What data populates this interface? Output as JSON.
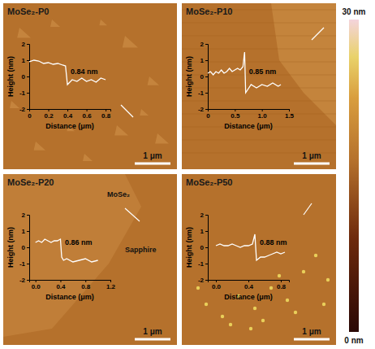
{
  "chart_data": [
    {
      "type": "line",
      "title": "MoSe₂-P0",
      "x_label": "Distance (μm)",
      "y_label": "Height (nm)",
      "x": [
        0,
        0.05,
        0.1,
        0.15,
        0.2,
        0.25,
        0.3,
        0.35,
        0.38,
        0.4,
        0.45,
        0.5,
        0.55,
        0.6,
        0.65,
        0.7,
        0.75,
        0.8
      ],
      "values": [
        0.9,
        1.0,
        0.95,
        0.8,
        0.85,
        0.75,
        0.8,
        0.7,
        0.65,
        -0.5,
        -0.2,
        -0.3,
        -0.1,
        -0.3,
        -0.2,
        -0.35,
        -0.1,
        -0.2
      ],
      "color": "#ffffff",
      "xlim": [
        0,
        0.85
      ],
      "xticks": [
        0,
        0.2,
        0.4,
        0.6,
        0.8
      ],
      "ylim": [
        -2,
        2
      ],
      "yticks": [
        -2,
        -1,
        0,
        1,
        2
      ],
      "annotations": [
        "0.84 nm"
      ],
      "scale_bar": "1 μm"
    },
    {
      "type": "line",
      "title": "MoSe₂-P10",
      "x_label": "Distance (μm)",
      "y_label": "Height (nm)",
      "x": [
        0,
        0.05,
        0.1,
        0.15,
        0.2,
        0.25,
        0.3,
        0.35,
        0.4,
        0.45,
        0.5,
        0.55,
        0.6,
        0.65,
        0.68,
        0.7,
        0.8,
        0.9,
        1.0,
        1.1,
        1.2,
        1.3,
        1.35
      ],
      "values": [
        0.2,
        0.3,
        0.1,
        0.3,
        0.2,
        0.4,
        0.2,
        0.3,
        0.5,
        0.3,
        0.4,
        0.5,
        0.4,
        0.6,
        1.5,
        -1.0,
        -0.5,
        -0.7,
        -0.5,
        -0.6,
        -0.4,
        -0.6,
        -0.5
      ],
      "color": "#ffffff",
      "xlim": [
        0,
        1.5
      ],
      "xticks": [
        0,
        0.5,
        {
          "value": 1,
          "label": "1.0"
        },
        1.5
      ],
      "ylim": [
        -2,
        2
      ],
      "yticks": [
        -2,
        -1,
        0,
        1,
        2
      ],
      "annotations": [
        "0.85 nm"
      ],
      "scale_bar": "1 μm"
    },
    {
      "type": "line",
      "title": "MoSe₂-P20",
      "x_label": "Distance (μm)",
      "y_label": "Height (nm)",
      "x": [
        0,
        0.05,
        0.1,
        0.15,
        0.2,
        0.25,
        0.3,
        0.35,
        0.4,
        0.42,
        0.45,
        0.5,
        0.6,
        0.7,
        0.8,
        0.9,
        1.0
      ],
      "values": [
        0.3,
        0.4,
        0.3,
        0.5,
        0.4,
        0.3,
        0.4,
        0.4,
        0.5,
        -0.6,
        -0.8,
        -0.7,
        -0.9,
        -0.8,
        -0.7,
        -0.9,
        -0.8
      ],
      "color": "#ffffff",
      "xlim": [
        -0.1,
        1.2
      ],
      "xticks": [
        {
          "value": 0,
          "label": "0.0"
        },
        0.4,
        0.8,
        1.2
      ],
      "ylim": [
        -2,
        2
      ],
      "yticks": [
        -2,
        -1,
        0,
        1,
        2
      ],
      "annotations": [
        "0.86 nm"
      ],
      "region_labels": [
        "MoSe₂",
        "Sapphire"
      ],
      "scale_bar": "1 μm"
    },
    {
      "type": "line",
      "title": "MoSe₂-P50",
      "x_label": "Distance (μm)",
      "y_label": "Height (nm)",
      "x": [
        0,
        0.05,
        0.1,
        0.15,
        0.2,
        0.25,
        0.3,
        0.35,
        0.4,
        0.45,
        0.48,
        0.5,
        0.55,
        0.6,
        0.65,
        0.7,
        0.75,
        0.8,
        0.85
      ],
      "values": [
        0.1,
        0.2,
        0.1,
        0.1,
        0.2,
        0.1,
        0.0,
        0.1,
        0.1,
        0.2,
        0.8,
        -0.8,
        -0.6,
        -0.6,
        -0.5,
        -0.4,
        -0.3,
        -0.4,
        -0.3
      ],
      "color": "#ffffff",
      "xlim": [
        -0.1,
        0.9
      ],
      "xticks": [
        {
          "value": 0,
          "label": "0.0"
        },
        0.4,
        0.8
      ],
      "ylim": [
        -2,
        2
      ],
      "yticks": [
        -2,
        -1,
        0,
        1,
        2
      ],
      "annotations": [
        "0.88 nm"
      ],
      "scale_bar": "1 μm"
    }
  ],
  "colorbar": {
    "range": [
      0,
      30
    ],
    "ticks": [
      {
        "value": 0,
        "label": "0 nm"
      },
      {
        "value": 30,
        "label": "30 nm"
      }
    ]
  }
}
